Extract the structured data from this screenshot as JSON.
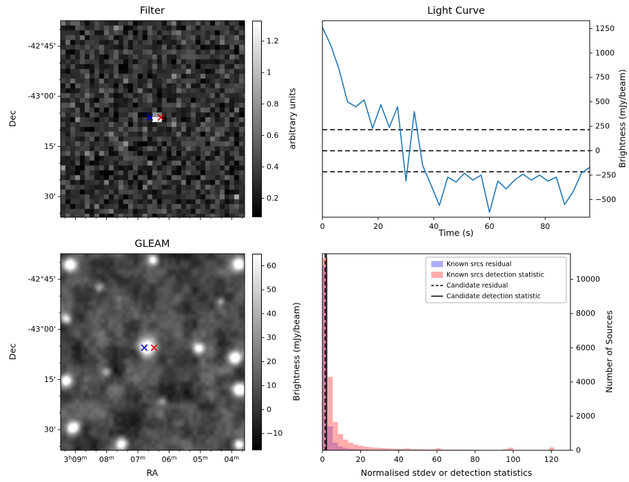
{
  "chart_data": [
    {
      "id": "filter",
      "type": "heatmap",
      "title": "Filter",
      "xlabel": "",
      "ylabel": "Dec",
      "y_tick_labels": [
        "-42°45'",
        "-43°00'",
        "15'",
        "30'"
      ],
      "colorbar": {
        "label": "arbitrary units",
        "ticks": [
          0.2,
          0.4,
          0.6,
          0.8,
          1.0,
          1.2
        ],
        "range": [
          0.08,
          1.33
        ]
      },
      "markers": [
        {
          "name": "candidate-position-marker",
          "symbol": "x",
          "color": "#0000dd"
        },
        {
          "name": "known-source-marker",
          "symbol": "x",
          "color": "#dd0000"
        }
      ]
    },
    {
      "id": "light_curve",
      "type": "line",
      "title": "Light Curve",
      "xlabel": "Time (s)",
      "ylabel": "Brightness (mJy/beam)",
      "x": [
        0,
        3,
        6,
        9,
        12,
        15,
        18,
        21,
        24,
        27,
        30,
        33,
        36,
        39,
        42,
        45,
        48,
        51,
        54,
        57,
        60,
        63,
        66,
        69,
        72,
        75,
        78,
        81,
        84,
        87,
        90,
        93,
        96
      ],
      "y": [
        1260,
        1080,
        830,
        500,
        450,
        520,
        230,
        470,
        240,
        450,
        -310,
        400,
        -150,
        -350,
        -560,
        -270,
        -320,
        -230,
        -300,
        -250,
        -630,
        -310,
        -390,
        -300,
        -240,
        -300,
        -250,
        -310,
        -270,
        -550,
        -420,
        -230,
        -170
      ],
      "hlines": [
        215,
        0,
        -215
      ],
      "x_ticks": [
        0,
        20,
        40,
        60,
        80
      ],
      "y_ticks": [
        -500,
        -250,
        0,
        250,
        500,
        750,
        1000,
        1250
      ],
      "xlim": [
        0,
        96
      ],
      "ylim": [
        -680,
        1330
      ],
      "line_color": "#1f77b4"
    },
    {
      "id": "gleam",
      "type": "heatmap",
      "title": "GLEAM",
      "xlabel": "RA",
      "ylabel": "Dec",
      "x_tick_labels": [
        "3h09m",
        "08m",
        "07m",
        "06m",
        "05m",
        "04m"
      ],
      "y_tick_labels": [
        "-42°45'",
        "-43°00'",
        "15'",
        "30'"
      ],
      "colorbar": {
        "label": "Brightness (mJy/beam)",
        "ticks": [
          -10,
          0,
          10,
          20,
          30,
          40,
          50,
          60
        ],
        "range": [
          -17,
          65
        ]
      },
      "markers": [
        {
          "name": "candidate-position-marker",
          "symbol": "x",
          "color": "#0000dd"
        },
        {
          "name": "known-source-marker",
          "symbol": "x",
          "color": "#dd0000"
        }
      ]
    },
    {
      "id": "histogram",
      "type": "bar",
      "title": "",
      "xlabel": "Normalised stdev or detection statistics",
      "ylabel": "Number of Sources",
      "bin_start": 0,
      "bin_width": 2.7,
      "series": [
        {
          "name": "Known srcs residual",
          "color": "rgba(90,90,235,0.5)",
          "values": [
            10800,
            1400,
            450,
            220,
            130,
            85,
            60,
            45,
            34,
            26,
            20,
            16,
            13,
            11,
            9,
            8,
            7,
            6,
            5,
            5,
            4,
            4,
            3,
            3,
            3,
            2,
            2,
            2,
            2,
            2,
            1,
            1,
            1,
            1,
            1,
            1,
            1,
            1,
            1,
            1,
            1,
            1,
            1,
            1,
            1,
            1,
            1,
            1
          ]
        },
        {
          "name": "Known srcs detection statistic",
          "color": "rgba(255,90,90,0.5)",
          "values": [
            11250,
            4300,
            1650,
            950,
            620,
            440,
            330,
            260,
            210,
            175,
            150,
            130,
            115,
            100,
            90,
            80,
            110,
            70,
            62,
            56,
            50,
            46,
            120,
            40,
            37,
            34,
            32,
            30,
            28,
            26,
            25,
            23,
            22,
            21,
            20,
            60,
            150,
            18,
            17,
            16,
            15,
            14,
            13,
            12,
            170,
            11,
            10,
            9
          ]
        }
      ],
      "vlines": [
        {
          "name": "Candidate residual",
          "style": "dashed",
          "x": 1.4
        },
        {
          "name": "Candidate detection statistic",
          "style": "solid",
          "x": 2.1
        }
      ],
      "legend": [
        "Known srcs residual",
        "Known srcs detection statistic",
        "Candidate residual",
        "Candidate detection statistic"
      ],
      "x_ticks": [
        0,
        20,
        40,
        60,
        80,
        100,
        120
      ],
      "y_ticks": [
        0,
        2000,
        4000,
        6000,
        8000,
        10000
      ],
      "xlim": [
        0,
        130
      ],
      "ylim": [
        0,
        11500
      ]
    }
  ]
}
